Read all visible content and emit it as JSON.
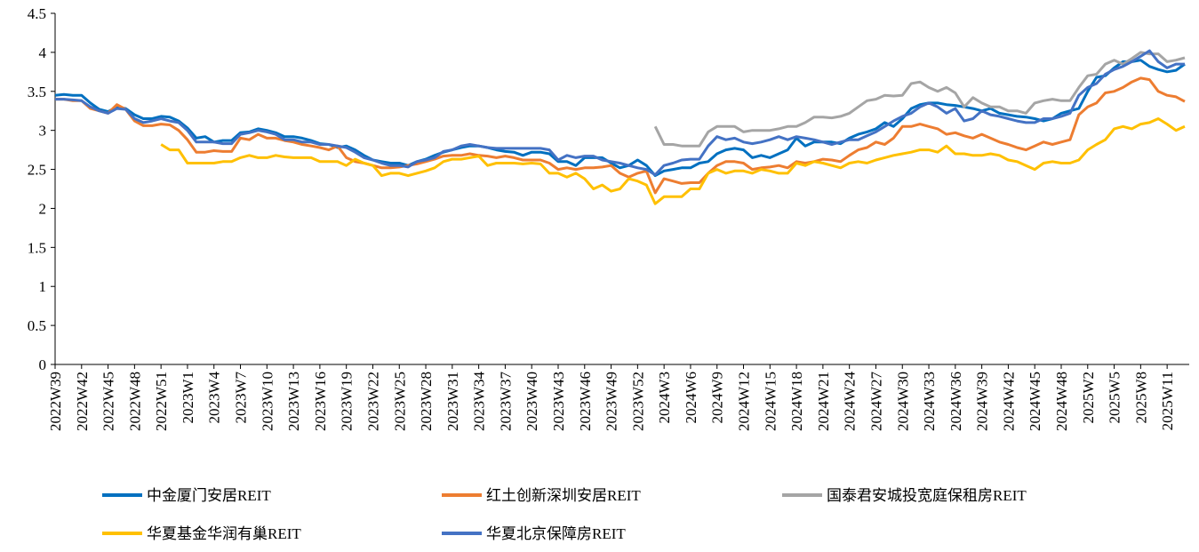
{
  "chart_data": {
    "type": "line",
    "categories": [
      "2022W39",
      null,
      null,
      "2022W42",
      null,
      null,
      "2022W45",
      null,
      null,
      "2022W48",
      null,
      null,
      "2022W51",
      null,
      null,
      "2023W1",
      null,
      null,
      "2023W4",
      null,
      null,
      "2023W7",
      null,
      null,
      "2023W10",
      null,
      null,
      "2023W13",
      null,
      null,
      "2023W16",
      null,
      null,
      "2023W19",
      null,
      null,
      "2023W22",
      null,
      null,
      "2023W25",
      null,
      null,
      "2023W28",
      null,
      null,
      "2023W31",
      null,
      null,
      "2023W34",
      null,
      null,
      "2023W37",
      null,
      null,
      "2023W40",
      null,
      null,
      "2023W43",
      null,
      null,
      "2023W46",
      null,
      null,
      "2023W49",
      null,
      null,
      "2023W52",
      null,
      null,
      "2024W3",
      null,
      null,
      "2024W6",
      null,
      null,
      "2024W9",
      null,
      null,
      "2024W12",
      null,
      null,
      "2024W15",
      null,
      null,
      "2024W18",
      null,
      null,
      "2024W21",
      null,
      null,
      "2024W24",
      null,
      null,
      "2024W27",
      null,
      null,
      "2024W30",
      null,
      null,
      "2024W33",
      null,
      null,
      "2024W36",
      null,
      null,
      "2024W39",
      null,
      null,
      "2024W42",
      null,
      null,
      "2024W45",
      null,
      null,
      "2024W48",
      null,
      null,
      "2025W2",
      null,
      null,
      "2025W5",
      null,
      null,
      "2025W8",
      null,
      null,
      "2025W11",
      null,
      null
    ],
    "series": [
      {
        "name": "中金厦门安居REIT",
        "color": "#0070C0",
        "values": [
          3.45,
          3.46,
          3.45,
          3.45,
          3.35,
          3.27,
          3.24,
          3.3,
          3.28,
          3.2,
          3.15,
          3.15,
          3.18,
          3.17,
          3.12,
          3.03,
          2.9,
          2.92,
          2.85,
          2.87,
          2.87,
          2.97,
          2.98,
          3.02,
          3.0,
          2.97,
          2.92,
          2.92,
          2.9,
          2.87,
          2.83,
          2.82,
          2.78,
          2.8,
          2.75,
          2.68,
          2.62,
          2.6,
          2.58,
          2.58,
          2.55,
          2.6,
          2.63,
          2.68,
          2.72,
          2.75,
          2.78,
          2.8,
          2.8,
          2.78,
          2.75,
          2.73,
          2.72,
          2.68,
          2.72,
          2.72,
          2.7,
          2.6,
          2.6,
          2.55,
          2.65,
          2.65,
          2.65,
          2.58,
          2.52,
          2.55,
          2.62,
          2.55,
          2.42,
          2.48,
          2.5,
          2.52,
          2.52,
          2.58,
          2.6,
          2.7,
          2.75,
          2.77,
          2.75,
          2.65,
          2.68,
          2.65,
          2.7,
          2.75,
          2.9,
          2.8,
          2.85,
          2.85,
          2.85,
          2.83,
          2.9,
          2.95,
          2.98,
          3.02,
          3.1,
          3.05,
          3.15,
          3.28,
          3.33,
          3.35,
          3.35,
          3.33,
          3.32,
          3.3,
          3.28,
          3.25,
          3.28,
          3.22,
          3.2,
          3.18,
          3.17,
          3.15,
          3.12,
          3.15,
          3.22,
          3.25,
          3.28,
          3.5,
          3.68,
          3.7,
          3.8,
          3.88,
          3.88,
          3.9,
          3.82,
          3.78,
          3.75,
          3.77,
          3.85
        ]
      },
      {
        "name": "红土创新深圳安居REIT",
        "color": "#ED7D31",
        "values": [
          3.4,
          3.4,
          3.38,
          3.38,
          3.28,
          3.25,
          3.22,
          3.33,
          3.27,
          3.12,
          3.06,
          3.06,
          3.08,
          3.07,
          3.0,
          2.88,
          2.72,
          2.72,
          2.74,
          2.73,
          2.73,
          2.9,
          2.88,
          2.95,
          2.9,
          2.9,
          2.87,
          2.85,
          2.82,
          2.8,
          2.78,
          2.75,
          2.8,
          2.65,
          2.6,
          2.58,
          2.55,
          2.52,
          2.52,
          2.53,
          2.55,
          2.57,
          2.6,
          2.63,
          2.67,
          2.68,
          2.68,
          2.7,
          2.68,
          2.67,
          2.65,
          2.67,
          2.65,
          2.62,
          2.62,
          2.62,
          2.58,
          2.5,
          2.52,
          2.5,
          2.52,
          2.52,
          2.53,
          2.55,
          2.45,
          2.4,
          2.45,
          2.48,
          2.2,
          2.38,
          2.35,
          2.32,
          2.33,
          2.33,
          2.45,
          2.55,
          2.6,
          2.6,
          2.58,
          2.5,
          2.52,
          2.53,
          2.55,
          2.52,
          2.6,
          2.58,
          2.6,
          2.63,
          2.62,
          2.6,
          2.68,
          2.75,
          2.78,
          2.85,
          2.82,
          2.9,
          3.05,
          3.05,
          3.08,
          3.05,
          3.02,
          2.95,
          2.97,
          2.93,
          2.9,
          2.95,
          2.9,
          2.85,
          2.82,
          2.78,
          2.75,
          2.8,
          2.85,
          2.82,
          2.85,
          2.88,
          3.2,
          3.3,
          3.35,
          3.48,
          3.5,
          3.55,
          3.62,
          3.67,
          3.65,
          3.5,
          3.45,
          3.43,
          3.37
        ]
      },
      {
        "name": "国泰君安城投宽庭保租房REIT",
        "color": "#A5A5A5",
        "values": [
          null,
          null,
          null,
          null,
          null,
          null,
          null,
          null,
          null,
          null,
          null,
          null,
          null,
          null,
          null,
          null,
          null,
          null,
          null,
          null,
          null,
          null,
          null,
          null,
          null,
          null,
          null,
          null,
          null,
          null,
          null,
          null,
          null,
          null,
          null,
          null,
          null,
          null,
          null,
          null,
          null,
          null,
          null,
          null,
          null,
          null,
          null,
          null,
          null,
          null,
          null,
          null,
          null,
          null,
          null,
          null,
          null,
          null,
          null,
          null,
          null,
          null,
          null,
          null,
          null,
          null,
          null,
          null,
          3.05,
          2.82,
          2.82,
          2.8,
          2.8,
          2.8,
          2.98,
          3.05,
          3.05,
          3.05,
          2.98,
          3.0,
          3.0,
          3.0,
          3.02,
          3.05,
          3.05,
          3.1,
          3.17,
          3.17,
          3.16,
          3.18,
          3.22,
          3.3,
          3.38,
          3.4,
          3.45,
          3.44,
          3.45,
          3.6,
          3.62,
          3.55,
          3.5,
          3.55,
          3.48,
          3.3,
          3.42,
          3.35,
          3.3,
          3.3,
          3.25,
          3.25,
          3.22,
          3.35,
          3.38,
          3.4,
          3.38,
          3.38,
          3.55,
          3.7,
          3.72,
          3.85,
          3.9,
          3.85,
          3.92,
          4.0,
          3.98,
          3.98,
          3.88,
          3.9,
          3.93
        ]
      },
      {
        "name": "华夏基金华润有巢REIT",
        "color": "#FFC000",
        "values": [
          null,
          null,
          null,
          null,
          null,
          null,
          null,
          null,
          null,
          null,
          null,
          null,
          2.82,
          2.75,
          2.75,
          2.58,
          2.58,
          2.58,
          2.58,
          2.6,
          2.6,
          2.65,
          2.68,
          2.65,
          2.65,
          2.68,
          2.66,
          2.65,
          2.65,
          2.65,
          2.6,
          2.6,
          2.6,
          2.55,
          2.63,
          2.58,
          2.55,
          2.42,
          2.45,
          2.45,
          2.42,
          2.45,
          2.48,
          2.52,
          2.6,
          2.63,
          2.63,
          2.65,
          2.67,
          2.55,
          2.58,
          2.58,
          2.58,
          2.57,
          2.58,
          2.57,
          2.45,
          2.45,
          2.4,
          2.45,
          2.38,
          2.25,
          2.3,
          2.22,
          2.25,
          2.38,
          2.35,
          2.3,
          2.06,
          2.15,
          2.15,
          2.15,
          2.25,
          2.25,
          2.45,
          2.5,
          2.45,
          2.48,
          2.48,
          2.45,
          2.5,
          2.48,
          2.45,
          2.45,
          2.58,
          2.55,
          2.6,
          2.58,
          2.55,
          2.52,
          2.58,
          2.6,
          2.58,
          2.62,
          2.65,
          2.68,
          2.7,
          2.72,
          2.75,
          2.75,
          2.72,
          2.8,
          2.7,
          2.7,
          2.68,
          2.68,
          2.7,
          2.68,
          2.62,
          2.6,
          2.55,
          2.5,
          2.58,
          2.6,
          2.58,
          2.58,
          2.62,
          2.75,
          2.82,
          2.88,
          3.02,
          3.05,
          3.02,
          3.08,
          3.1,
          3.15,
          3.08,
          3.0,
          3.05
        ]
      },
      {
        "name": "华夏北京保障房REIT",
        "color": "#4472C4",
        "values": [
          3.4,
          3.4,
          3.39,
          3.38,
          3.3,
          3.25,
          3.22,
          3.28,
          3.27,
          3.15,
          3.1,
          3.12,
          3.15,
          3.12,
          3.1,
          3.0,
          2.85,
          2.85,
          2.85,
          2.83,
          2.83,
          2.95,
          2.97,
          3.0,
          2.98,
          2.95,
          2.88,
          2.88,
          2.85,
          2.85,
          2.82,
          2.82,
          2.8,
          2.78,
          2.72,
          2.65,
          2.62,
          2.58,
          2.55,
          2.55,
          2.53,
          2.6,
          2.62,
          2.65,
          2.73,
          2.75,
          2.8,
          2.82,
          2.8,
          2.78,
          2.77,
          2.77,
          2.77,
          2.77,
          2.77,
          2.77,
          2.75,
          2.62,
          2.68,
          2.65,
          2.67,
          2.67,
          2.62,
          2.6,
          2.58,
          2.55,
          2.52,
          2.5,
          2.43,
          2.55,
          2.58,
          2.62,
          2.63,
          2.63,
          2.8,
          2.92,
          2.88,
          2.9,
          2.85,
          2.83,
          2.85,
          2.88,
          2.92,
          2.88,
          2.92,
          2.9,
          2.88,
          2.85,
          2.82,
          2.85,
          2.88,
          2.88,
          2.93,
          2.98,
          3.05,
          3.12,
          3.18,
          3.22,
          3.3,
          3.35,
          3.3,
          3.22,
          3.28,
          3.12,
          3.15,
          3.25,
          3.2,
          3.18,
          3.15,
          3.12,
          3.1,
          3.1,
          3.15,
          3.15,
          3.18,
          3.22,
          3.45,
          3.55,
          3.6,
          3.72,
          3.78,
          3.82,
          3.88,
          3.95,
          4.02,
          3.88,
          3.8,
          3.85,
          3.85
        ]
      }
    ],
    "ylim": [
      0,
      4.5
    ],
    "yticks": [
      0,
      0.5,
      1,
      1.5,
      2,
      2.5,
      3,
      3.5,
      4,
      4.5
    ],
    "grid": false,
    "legend": "bottom"
  }
}
